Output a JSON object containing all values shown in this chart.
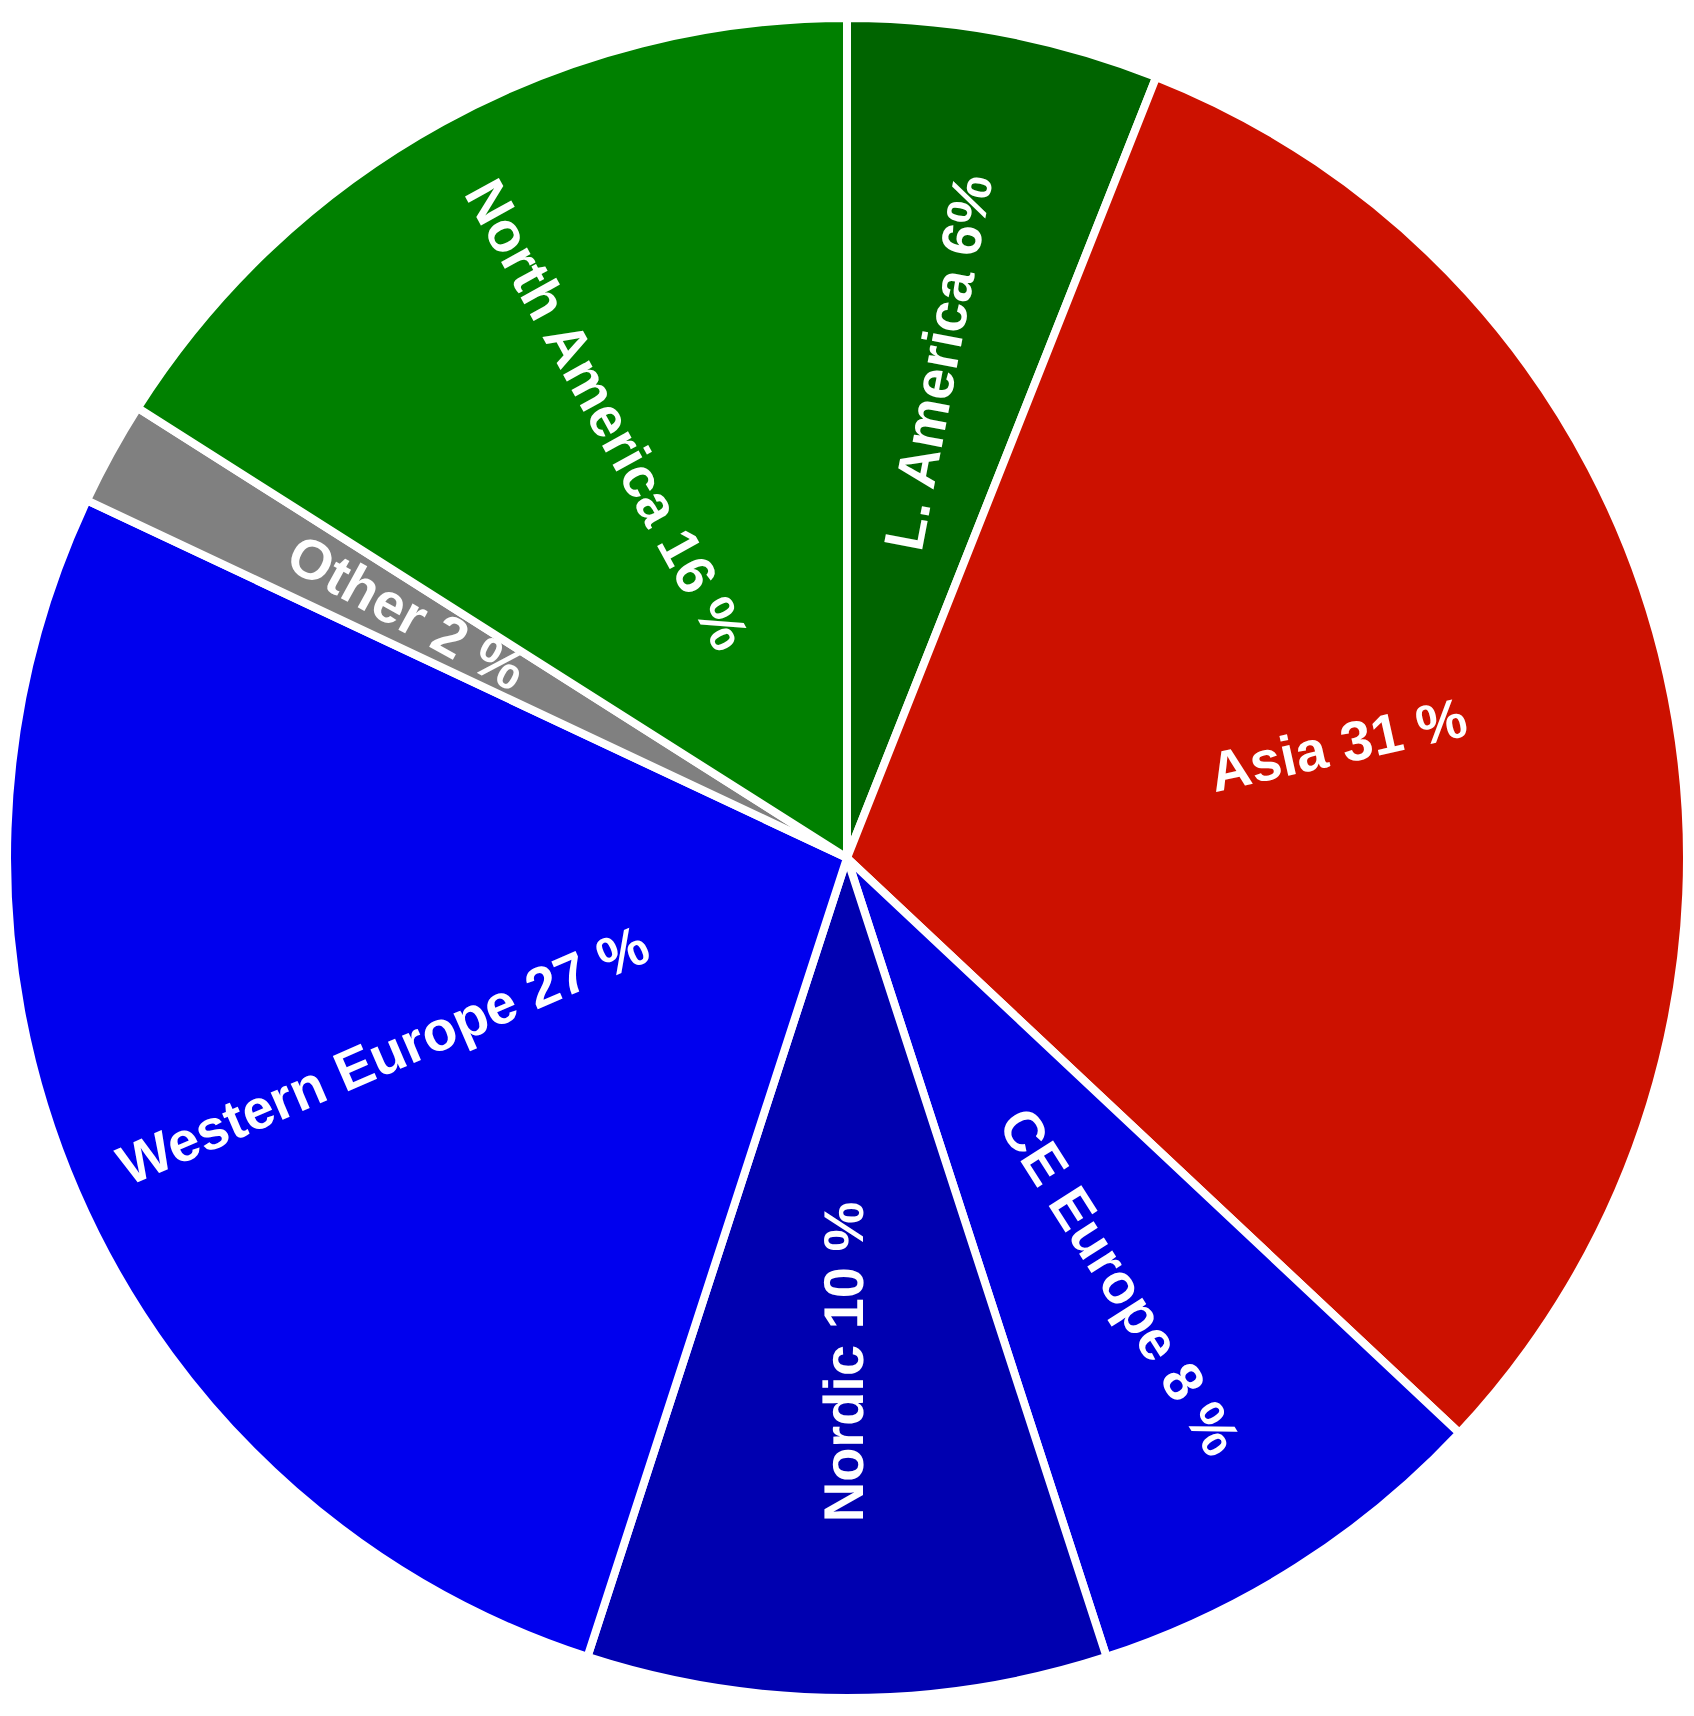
{
  "chart_data": {
    "type": "pie",
    "categories": [
      "L. America",
      "Asia",
      "CE Europe  ",
      "Nordic",
      "Western Europe",
      "Other",
      "North America"
    ],
    "values": [
      6,
      31,
      8,
      10,
      27,
      2,
      16
    ],
    "value_labels": [
      "6%",
      "31 %",
      "8 %",
      "10 %",
      "27 %",
      "2 %",
      "16 %"
    ],
    "colors": [
      "#006400",
      "#cc1100",
      "#0000dd",
      "#0000b0",
      "#0000ee",
      "#808080",
      "#008000"
    ]
  }
}
